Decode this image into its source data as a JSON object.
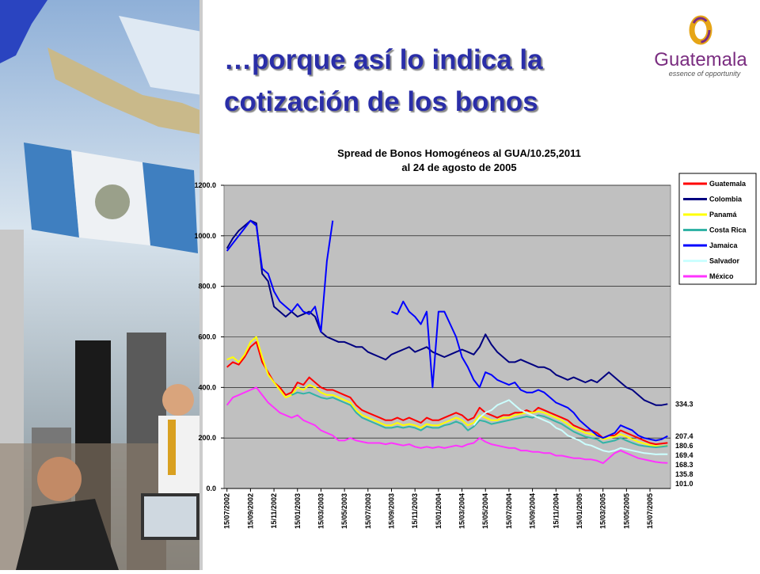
{
  "header": {
    "title_lines": [
      "…porque así lo indica la",
      "cotización de los bonos"
    ]
  },
  "logo": {
    "name": "Guatemala",
    "tagline": "essence of opportunity"
  },
  "chart_data": {
    "type": "line",
    "title": "Spread de Bonos Homogéneos al GUA/10.25,2011",
    "subtitle": "al 24 de agosto de 2005",
    "categories": [
      "15/07/2002",
      null,
      null,
      null,
      "15/09/2002",
      null,
      null,
      null,
      "15/11/2002",
      null,
      null,
      null,
      "15/01/2003",
      null,
      null,
      null,
      "15/03/2003",
      null,
      null,
      null,
      "15/05/2003",
      null,
      null,
      null,
      "15/07/2003",
      null,
      null,
      null,
      "15/09/2003",
      null,
      null,
      null,
      "15/11/2003",
      null,
      null,
      null,
      "15/01/2004",
      null,
      null,
      null,
      "15/03/2004",
      null,
      null,
      null,
      "15/05/2004",
      null,
      null,
      null,
      "15/07/2004",
      null,
      null,
      null,
      "15/09/2004",
      null,
      null,
      null,
      "15/11/2004",
      null,
      null,
      null,
      "15/01/2005",
      null,
      null,
      null,
      "15/03/2005",
      null,
      null,
      null,
      "15/05/2005",
      null,
      null,
      null,
      "15/07/2005",
      null,
      null,
      null
    ],
    "ylim": [
      0,
      1200
    ],
    "yticks": [
      {
        "value": 0,
        "label": "0.0"
      },
      {
        "value": 200,
        "label": "200.0"
      },
      {
        "value": 400,
        "label": "400.0"
      },
      {
        "value": 600,
        "label": "600.0"
      },
      {
        "value": 800,
        "label": "800.0"
      },
      {
        "value": 1000,
        "label": "1000.0"
      },
      {
        "value": 1200,
        "label": "1200.0"
      }
    ],
    "grid": true,
    "legend": "right",
    "series": [
      {
        "name": "Guatemala",
        "color": "#ff0000",
        "values": [
          480,
          500,
          490,
          520,
          560,
          580,
          500,
          460,
          420,
          400,
          370,
          380,
          420,
          410,
          440,
          420,
          400,
          390,
          390,
          380,
          370,
          360,
          330,
          310,
          300,
          290,
          280,
          270,
          270,
          280,
          270,
          280,
          270,
          260,
          280,
          270,
          270,
          280,
          290,
          300,
          290,
          270,
          280,
          320,
          300,
          290,
          280,
          290,
          290,
          300,
          300,
          310,
          300,
          320,
          310,
          300,
          290,
          280,
          270,
          250,
          240,
          230,
          230,
          220,
          200,
          210,
          210,
          230,
          220,
          210,
          200,
          190,
          180,
          175,
          178,
          180.6
        ],
        "value_labels": [
          null,
          null,
          null,
          null,
          null,
          null,
          null,
          null,
          null,
          null,
          null,
          null,
          null,
          null,
          null,
          null,
          null,
          null,
          null,
          null,
          null,
          null,
          null,
          null,
          null,
          null,
          null,
          null,
          null,
          null,
          null,
          null,
          null,
          null,
          null,
          null,
          null,
          null,
          null,
          null,
          null,
          null,
          null,
          null,
          null,
          null,
          null,
          null,
          null,
          null,
          null,
          null,
          null,
          null,
          null,
          null,
          null,
          null,
          null,
          null,
          null,
          null,
          null,
          null,
          null,
          null,
          null,
          null,
          null,
          null,
          null,
          null,
          null,
          null,
          null,
          "180.6"
        ]
      },
      {
        "name": "Colombia",
        "color": "#000080",
        "values": [
          950,
          990,
          1020,
          1040,
          1060,
          1050,
          850,
          820,
          720,
          700,
          680,
          700,
          680,
          690,
          700,
          680,
          620,
          600,
          590,
          580,
          580,
          570,
          560,
          560,
          540,
          530,
          520,
          510,
          530,
          540,
          550,
          560,
          540,
          550,
          560,
          540,
          530,
          520,
          530,
          540,
          550,
          540,
          530,
          560,
          610,
          570,
          540,
          520,
          500,
          500,
          510,
          500,
          490,
          480,
          480,
          470,
          450,
          440,
          430,
          440,
          430,
          420,
          430,
          420,
          440,
          460,
          440,
          420,
          400,
          390,
          370,
          350,
          340,
          330,
          330,
          334.3
        ],
        "value_labels": [
          null,
          null,
          null,
          null,
          null,
          null,
          null,
          null,
          null,
          null,
          null,
          null,
          null,
          null,
          null,
          null,
          null,
          null,
          null,
          null,
          null,
          null,
          null,
          null,
          null,
          null,
          null,
          null,
          null,
          null,
          null,
          null,
          null,
          null,
          null,
          null,
          null,
          null,
          null,
          null,
          null,
          null,
          null,
          null,
          null,
          null,
          null,
          null,
          null,
          null,
          null,
          null,
          null,
          null,
          null,
          null,
          null,
          null,
          null,
          null,
          null,
          null,
          null,
          null,
          null,
          null,
          null,
          null,
          null,
          null,
          null,
          null,
          null,
          null,
          null,
          "334.3"
        ]
      },
      {
        "name": "Panamá",
        "color": "#ffff00",
        "values": [
          510,
          520,
          500,
          530,
          580,
          600,
          520,
          450,
          420,
          390,
          360,
          370,
          400,
          390,
          410,
          400,
          380,
          370,
          370,
          360,
          350,
          340,
          310,
          290,
          280,
          270,
          260,
          250,
          250,
          260,
          250,
          255,
          250,
          240,
          255,
          250,
          250,
          260,
          270,
          280,
          270,
          250,
          260,
          290,
          280,
          270,
          270,
          280,
          280,
          290,
          295,
          300,
          300,
          305,
          300,
          290,
          280,
          270,
          255,
          240,
          230,
          220,
          215,
          210,
          195,
          200,
          205,
          215,
          205,
          195,
          185,
          178,
          172,
          168,
          167,
          169.4
        ],
        "value_labels": [
          null,
          null,
          null,
          null,
          null,
          null,
          null,
          null,
          null,
          null,
          null,
          null,
          null,
          null,
          null,
          null,
          null,
          null,
          null,
          null,
          null,
          null,
          null,
          null,
          null,
          null,
          null,
          null,
          null,
          null,
          null,
          null,
          null,
          null,
          null,
          null,
          null,
          null,
          null,
          null,
          null,
          null,
          null,
          null,
          null,
          null,
          null,
          null,
          null,
          null,
          null,
          null,
          null,
          null,
          null,
          null,
          null,
          null,
          null,
          null,
          null,
          null,
          null,
          null,
          null,
          null,
          null,
          null,
          null,
          null,
          null,
          null,
          null,
          null,
          null,
          "169.4"
        ]
      },
      {
        "name": "Costa Rica",
        "color": "#33b3a6",
        "values": [
          null,
          null,
          null,
          null,
          null,
          null,
          null,
          null,
          null,
          null,
          null,
          370,
          380,
          375,
          380,
          370,
          360,
          355,
          360,
          350,
          340,
          330,
          300,
          280,
          270,
          260,
          250,
          240,
          240,
          245,
          240,
          245,
          240,
          230,
          245,
          240,
          240,
          250,
          255,
          265,
          255,
          230,
          245,
          270,
          265,
          255,
          260,
          265,
          270,
          275,
          280,
          285,
          280,
          290,
          285,
          275,
          265,
          255,
          240,
          225,
          215,
          205,
          200,
          195,
          180,
          185,
          190,
          200,
          190,
          180,
          172,
          168,
          165,
          163,
          165,
          168.3
        ],
        "value_labels": [
          null,
          null,
          null,
          null,
          null,
          null,
          null,
          null,
          null,
          null,
          null,
          null,
          null,
          null,
          null,
          null,
          null,
          null,
          null,
          null,
          null,
          null,
          null,
          null,
          null,
          null,
          null,
          null,
          null,
          null,
          null,
          null,
          null,
          null,
          null,
          null,
          null,
          null,
          null,
          null,
          null,
          null,
          null,
          null,
          null,
          null,
          null,
          null,
          null,
          null,
          null,
          null,
          null,
          null,
          null,
          null,
          null,
          null,
          null,
          null,
          null,
          null,
          null,
          null,
          null,
          null,
          null,
          null,
          null,
          null,
          null,
          null,
          null,
          null,
          null,
          "168.3"
        ]
      },
      {
        "name": "Jamaica",
        "color": "#0000ff",
        "values": [
          940,
          970,
          1000,
          1030,
          1060,
          1040,
          870,
          850,
          780,
          740,
          720,
          700,
          730,
          700,
          690,
          720,
          620,
          900,
          1060,
          null,
          null,
          null,
          null,
          null,
          null,
          null,
          null,
          null,
          700,
          690,
          740,
          700,
          680,
          650,
          700,
          400,
          700,
          700,
          650,
          600,
          520,
          480,
          430,
          400,
          460,
          450,
          430,
          420,
          410,
          420,
          390,
          380,
          380,
          390,
          380,
          360,
          340,
          330,
          320,
          300,
          270,
          250,
          230,
          210,
          200,
          210,
          220,
          250,
          240,
          230,
          210,
          200,
          195,
          190,
          195,
          207.4
        ],
        "value_labels": [
          null,
          null,
          null,
          null,
          null,
          null,
          null,
          null,
          null,
          null,
          null,
          null,
          null,
          null,
          null,
          null,
          null,
          null,
          null,
          null,
          null,
          null,
          null,
          null,
          null,
          null,
          null,
          null,
          null,
          null,
          null,
          null,
          null,
          null,
          null,
          null,
          null,
          null,
          null,
          null,
          null,
          null,
          null,
          null,
          null,
          null,
          null,
          null,
          null,
          null,
          null,
          null,
          null,
          null,
          null,
          null,
          null,
          null,
          null,
          null,
          null,
          null,
          null,
          null,
          null,
          null,
          null,
          null,
          null,
          null,
          null,
          null,
          null,
          null,
          null,
          "207.4"
        ]
      },
      {
        "name": "Salvador",
        "color": "#ccffff",
        "values": [
          null,
          null,
          null,
          null,
          null,
          null,
          null,
          null,
          null,
          null,
          null,
          null,
          null,
          null,
          null,
          null,
          null,
          null,
          null,
          null,
          null,
          null,
          null,
          null,
          null,
          null,
          null,
          null,
          null,
          null,
          null,
          null,
          null,
          null,
          null,
          null,
          null,
          null,
          null,
          null,
          null,
          null,
          250,
          280,
          300,
          310,
          330,
          340,
          350,
          330,
          310,
          300,
          290,
          280,
          270,
          260,
          240,
          230,
          210,
          200,
          190,
          175,
          170,
          160,
          150,
          145,
          150,
          160,
          155,
          150,
          145,
          140,
          138,
          135,
          136,
          135.8
        ],
        "value_labels": [
          null,
          null,
          null,
          null,
          null,
          null,
          null,
          null,
          null,
          null,
          null,
          null,
          null,
          null,
          null,
          null,
          null,
          null,
          null,
          null,
          null,
          null,
          null,
          null,
          null,
          null,
          null,
          null,
          null,
          null,
          null,
          null,
          null,
          null,
          null,
          null,
          null,
          null,
          null,
          null,
          null,
          null,
          null,
          null,
          null,
          null,
          null,
          null,
          null,
          null,
          null,
          null,
          null,
          null,
          null,
          null,
          null,
          null,
          null,
          null,
          null,
          null,
          null,
          null,
          null,
          null,
          null,
          null,
          null,
          null,
          null,
          null,
          null,
          null,
          null,
          "135.8"
        ]
      },
      {
        "name": "México",
        "color": "#ff33ff",
        "values": [
          330,
          360,
          370,
          380,
          390,
          400,
          370,
          340,
          320,
          300,
          290,
          280,
          290,
          270,
          260,
          250,
          230,
          220,
          210,
          190,
          190,
          200,
          190,
          185,
          180,
          180,
          180,
          175,
          180,
          175,
          170,
          175,
          165,
          160,
          165,
          160,
          165,
          160,
          165,
          170,
          165,
          175,
          180,
          200,
          185,
          175,
          170,
          165,
          160,
          160,
          150,
          150,
          145,
          145,
          140,
          140,
          130,
          130,
          125,
          120,
          120,
          115,
          115,
          110,
          100,
          120,
          140,
          150,
          140,
          130,
          120,
          115,
          110,
          105,
          102,
          101.0
        ],
        "value_labels": [
          null,
          null,
          null,
          null,
          null,
          null,
          null,
          null,
          null,
          null,
          null,
          null,
          null,
          null,
          null,
          null,
          null,
          null,
          null,
          null,
          null,
          null,
          null,
          null,
          null,
          null,
          null,
          null,
          null,
          null,
          null,
          null,
          null,
          null,
          null,
          null,
          null,
          null,
          null,
          null,
          null,
          null,
          null,
          null,
          null,
          null,
          null,
          null,
          null,
          null,
          null,
          null,
          null,
          null,
          null,
          null,
          null,
          null,
          null,
          null,
          null,
          null,
          null,
          null,
          null,
          null,
          null,
          null,
          null,
          null,
          null,
          null,
          null,
          null,
          null,
          "101.0"
        ]
      }
    ]
  }
}
